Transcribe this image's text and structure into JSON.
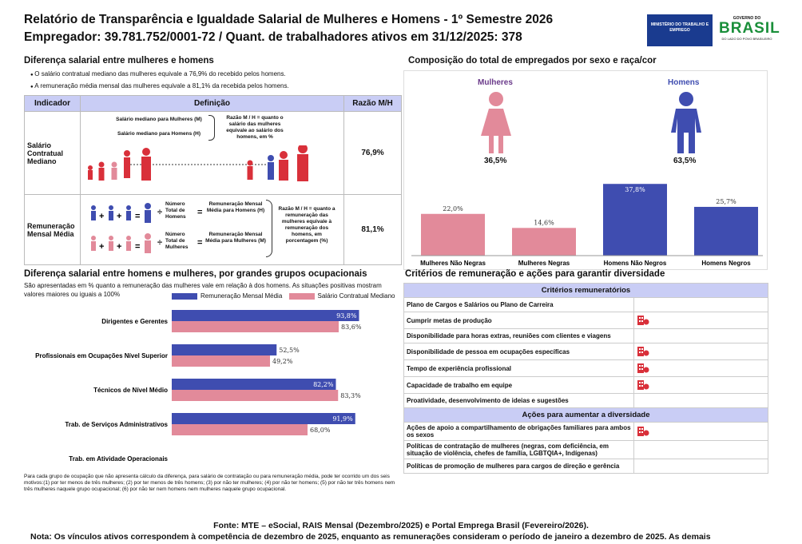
{
  "header": {
    "title": "Relatório de Transparência e Igualdade Salarial de Mulheres e Homens - 1º Semestre 2026",
    "employer": "Empregador: 39.781.752/0001-72 / Quant. de trabalhadores ativos em 31/12/2025: 378",
    "ministry_logo": "MINISTÉRIO DO TRABALHO E EMPREGO",
    "gov_logo_top": "GOVERNO DO",
    "gov_logo_main": "BRASIL",
    "gov_logo_sub": "DO LADO DO POVO BRASILEIRO"
  },
  "salary_gap": {
    "title": "Diferença salarial entre mulheres e homens",
    "bullet1": "O salário contratual mediano das mulheres equivale a 76,9% do recebido pelos homens.",
    "bullet2": "A remuneração média mensal das mulheres equivale a 81,1% da recebida pelos homens.",
    "table": {
      "col_indicator": "Indicador",
      "col_definition": "Definição",
      "col_ratio": "Razão M/H",
      "row1_label": "Salário Contratual Mediano",
      "row1_text_m": "Salário mediano para Mulheres (M)",
      "row1_text_h": "Salário mediano para Homens (H)",
      "row1_note": "Razão M / H = quanto o salário das mulheres equivale ao salário dos homens, em %",
      "row1_ratio": "76,9%",
      "row2_label": "Remuneração Mensal Média",
      "row2_num_h": "Número Total de Homens",
      "row2_res_h": "Remuneração Mensal Média para Homens (H)",
      "row2_num_m": "Número Total de Mulheres",
      "row2_res_m": "Remuneração Mensal Média para Mulheres (M)",
      "row2_note": "Razão M / H = quanto a remuneração das mulheres equivale à remuneração dos homens, em porcentagem (%)",
      "row2_ratio": "81,1%"
    }
  },
  "composition": {
    "title": "Composição do total de empregados por sexo e raça/cor",
    "women_label": "Mulheres",
    "women_pct": "36,5%",
    "men_label": "Homens",
    "men_pct": "63,5%",
    "colors": {
      "women": "#e28a9a",
      "men": "#3f4db0"
    }
  },
  "chart_data": [
    {
      "type": "bar",
      "categories": [
        "Mulheres Não Negras",
        "Mulheres Negras",
        "Homens Não Negros",
        "Homens Negros"
      ],
      "values": [
        22.0,
        14.6,
        37.8,
        25.7
      ],
      "labels": [
        "22,0%",
        "14,6%",
        "37,8%",
        "25,7%"
      ],
      "colors": [
        "#e28a9a",
        "#e28a9a",
        "#3f4db0",
        "#3f4db0"
      ],
      "ylim": [
        0,
        40
      ]
    },
    {
      "type": "bar",
      "orientation": "horizontal",
      "title": "Diferença salarial entre homens e mulheres, por grandes grupos ocupacionais",
      "subtitle": "São apresentadas em % quanto a remuneração das mulheres vale em relação à dos homens. As situações positivas mostram valores maiores ou iguais a 100%",
      "categories": [
        "Dirigentes e Gerentes",
        "Profissionais em Ocupações Nível Superior",
        "Técnicos de Nível Médio",
        "Trab. de Serviços Administrativos",
        "Trab. em Atividade Operacionais"
      ],
      "series": [
        {
          "name": "Remuneração Mensal Média",
          "values": [
            93.8,
            52.5,
            82.2,
            91.9,
            null
          ],
          "labels": [
            "93,8%",
            "52,5%",
            "82,2%",
            "91,9%",
            ""
          ],
          "color": "#3f4db0"
        },
        {
          "name": "Salário Contratual Mediano",
          "values": [
            83.6,
            49.2,
            83.3,
            68.0,
            null
          ],
          "labels": [
            "83,6%",
            "49,2%",
            "83,3%",
            "68,0%",
            ""
          ],
          "color": "#e28a9a"
        }
      ],
      "xlim": [
        0,
        100
      ],
      "footnote": "Para cada grupo de ocupação que não apresenta cálculo da diferença, para salário de contratação ou para remuneração média, pode ter ocorrido um dos seis motivos:(1) por ter menos de três mulheres; (2) por ter menos de três homens; (3) por não ter mulheres; (4) por não ter homens; (5) por não ter três homens nem três mulheres naquele grupo ocupacional; (6) por não ter nem homens nem mulheres naquele grupo ocupacional."
    }
  ],
  "criteria": {
    "title": "Critérios de remuneração e ações para garantir diversidade",
    "header1": "Critérios remuneratórios",
    "items1": [
      {
        "label": "Plano de Cargos e Salários ou Plano de Carreira",
        "icon": false
      },
      {
        "label": "Cumprir metas de produção",
        "icon": true
      },
      {
        "label": "Disponibilidade para horas extras, reuniões com clientes e viagens",
        "icon": false
      },
      {
        "label": "Disponibilidade de pessoa em ocupações específicas",
        "icon": true
      },
      {
        "label": "Tempo de experiência profissional",
        "icon": true
      },
      {
        "label": "Capacidade de trabalho em equipe",
        "icon": true
      },
      {
        "label": "Proatividade, desenvolvimento de ideias e sugestões",
        "icon": false
      }
    ],
    "header2": "Ações para aumentar a diversidade",
    "items2": [
      {
        "label": "Ações de apoio a compartilhamento de obrigações familiares para ambos os sexos",
        "icon": true
      },
      {
        "label": "Políticas de contratação de mulheres (negras, com deficiência, em situação de violência, chefes de família, LGBTQIA+, Indígenas)",
        "icon": false
      },
      {
        "label": "Políticas de promoção de mulheres para cargos de direção e gerência",
        "icon": false
      }
    ],
    "icon_name": "company-icon"
  },
  "footer": {
    "source": "Fonte: MTE – eSocial, RAIS Mensal (Dezembro/2025) e Portal Emprega Brasil (Fevereiro/2026).",
    "note": "Nota: Os vínculos ativos correspondem à competência de dezembro de 2025, enquanto as remunerações consideram o período de janeiro a dezembro de 2025. As demais"
  }
}
